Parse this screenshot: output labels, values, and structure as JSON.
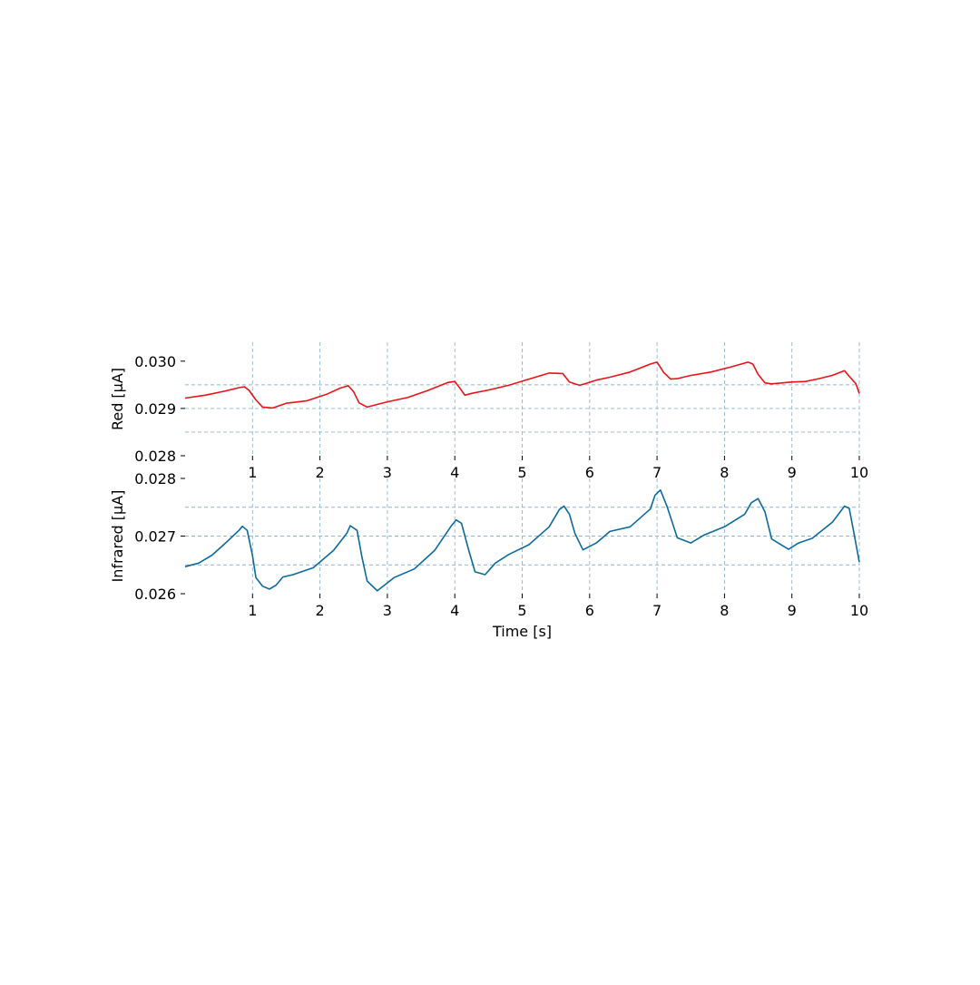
{
  "chart_data": [
    {
      "type": "line",
      "title": "",
      "xlabel": "",
      "ylabel": "Red [μA]",
      "xlim": [
        0,
        10
      ],
      "ylim": [
        0.028,
        0.0304
      ],
      "xticks": [
        1,
        2,
        3,
        4,
        5,
        6,
        7,
        8,
        9,
        10
      ],
      "xtick_labels": [
        "1",
        "2",
        "3",
        "4",
        "5",
        "6",
        "7",
        "8",
        "9",
        "10"
      ],
      "yticks": [
        0.028,
        0.029,
        0.03
      ],
      "ytick_labels": [
        "0.028",
        "0.029",
        "0.030"
      ],
      "grid": true,
      "gridlines_y": [
        0.0285,
        0.029,
        0.0295
      ],
      "legend": "none",
      "color": "#e8141a",
      "series": [
        {
          "x": [
            0,
            0.3,
            0.6,
            0.8,
            0.88,
            0.95,
            1.05,
            1.15,
            1.3,
            1.5,
            1.8,
            2.1,
            2.3,
            2.42,
            2.5,
            2.58,
            2.7,
            3.0,
            3.3,
            3.6,
            3.9,
            4.0,
            4.08,
            4.15,
            4.25,
            4.5,
            4.8,
            5.1,
            5.4,
            5.6,
            5.7,
            5.85,
            5.95,
            6.1,
            6.3,
            6.6,
            6.9,
            7.0,
            7.1,
            7.2,
            7.3,
            7.5,
            7.8,
            8.1,
            8.35,
            8.42,
            8.5,
            8.6,
            8.7,
            9.0,
            9.2,
            9.4,
            9.6,
            9.78,
            9.85,
            9.95,
            10.0
          ],
          "y": [
            0.02922,
            0.02928,
            0.02937,
            0.02944,
            0.02946,
            0.02938,
            0.02918,
            0.02903,
            0.02901,
            0.02911,
            0.02916,
            0.0293,
            0.02943,
            0.02948,
            0.02935,
            0.02912,
            0.02903,
            0.02914,
            0.02923,
            0.02938,
            0.02955,
            0.02957,
            0.02942,
            0.02928,
            0.02932,
            0.02939,
            0.02949,
            0.02962,
            0.02975,
            0.02974,
            0.02956,
            0.02949,
            0.02953,
            0.0296,
            0.02966,
            0.02977,
            0.02994,
            0.02998,
            0.02976,
            0.02962,
            0.02963,
            0.0297,
            0.02977,
            0.02988,
            0.02998,
            0.02994,
            0.02972,
            0.02954,
            0.02952,
            0.02956,
            0.02957,
            0.02963,
            0.0297,
            0.0298,
            0.02968,
            0.02952,
            0.02932
          ]
        }
      ]
    },
    {
      "type": "line",
      "title": "",
      "xlabel": "Time [s]",
      "ylabel": "Infrared [μA]",
      "xlim": [
        0,
        10
      ],
      "ylim": [
        0.026,
        0.028
      ],
      "xticks": [
        1,
        2,
        3,
        4,
        5,
        6,
        7,
        8,
        9,
        10
      ],
      "xtick_labels": [
        "1",
        "2",
        "3",
        "4",
        "5",
        "6",
        "7",
        "8",
        "9",
        "10"
      ],
      "yticks": [
        0.026,
        0.027,
        0.028
      ],
      "ytick_labels": [
        "0.026",
        "0.027",
        "0.028"
      ],
      "grid": true,
      "gridlines_y": [
        0.0265,
        0.027,
        0.0275
      ],
      "legend": "none",
      "color": "#0d6a9c",
      "series": [
        {
          "x": [
            0,
            0.2,
            0.4,
            0.6,
            0.8,
            0.85,
            0.92,
            1.0,
            1.05,
            1.15,
            1.25,
            1.35,
            1.45,
            1.6,
            1.9,
            2.2,
            2.4,
            2.45,
            2.55,
            2.62,
            2.7,
            2.85,
            3.1,
            3.4,
            3.7,
            3.95,
            4.02,
            4.1,
            4.2,
            4.3,
            4.45,
            4.6,
            4.8,
            5.1,
            5.4,
            5.55,
            5.62,
            5.7,
            5.78,
            5.9,
            6.1,
            6.3,
            6.6,
            6.9,
            6.97,
            7.05,
            7.15,
            7.3,
            7.5,
            7.7,
            8.0,
            8.3,
            8.4,
            8.5,
            8.6,
            8.7,
            8.95,
            9.1,
            9.3,
            9.6,
            9.78,
            9.85,
            9.92,
            10.0
          ],
          "y": [
            0.02647,
            0.02653,
            0.02667,
            0.02688,
            0.0271,
            0.02717,
            0.0271,
            0.02666,
            0.02628,
            0.02613,
            0.02608,
            0.02615,
            0.02629,
            0.02633,
            0.02645,
            0.02675,
            0.02705,
            0.02718,
            0.0271,
            0.02665,
            0.02622,
            0.02605,
            0.02628,
            0.02643,
            0.02675,
            0.02718,
            0.02728,
            0.02722,
            0.02678,
            0.02638,
            0.02633,
            0.02653,
            0.02668,
            0.02685,
            0.02716,
            0.02746,
            0.02752,
            0.02738,
            0.02705,
            0.02676,
            0.02688,
            0.02708,
            0.02716,
            0.02747,
            0.02771,
            0.0278,
            0.02751,
            0.02697,
            0.02688,
            0.02702,
            0.02716,
            0.02738,
            0.02758,
            0.02765,
            0.02742,
            0.02695,
            0.02677,
            0.02688,
            0.02696,
            0.02724,
            0.02752,
            0.02748,
            0.02705,
            0.02655
          ]
        }
      ]
    }
  ]
}
